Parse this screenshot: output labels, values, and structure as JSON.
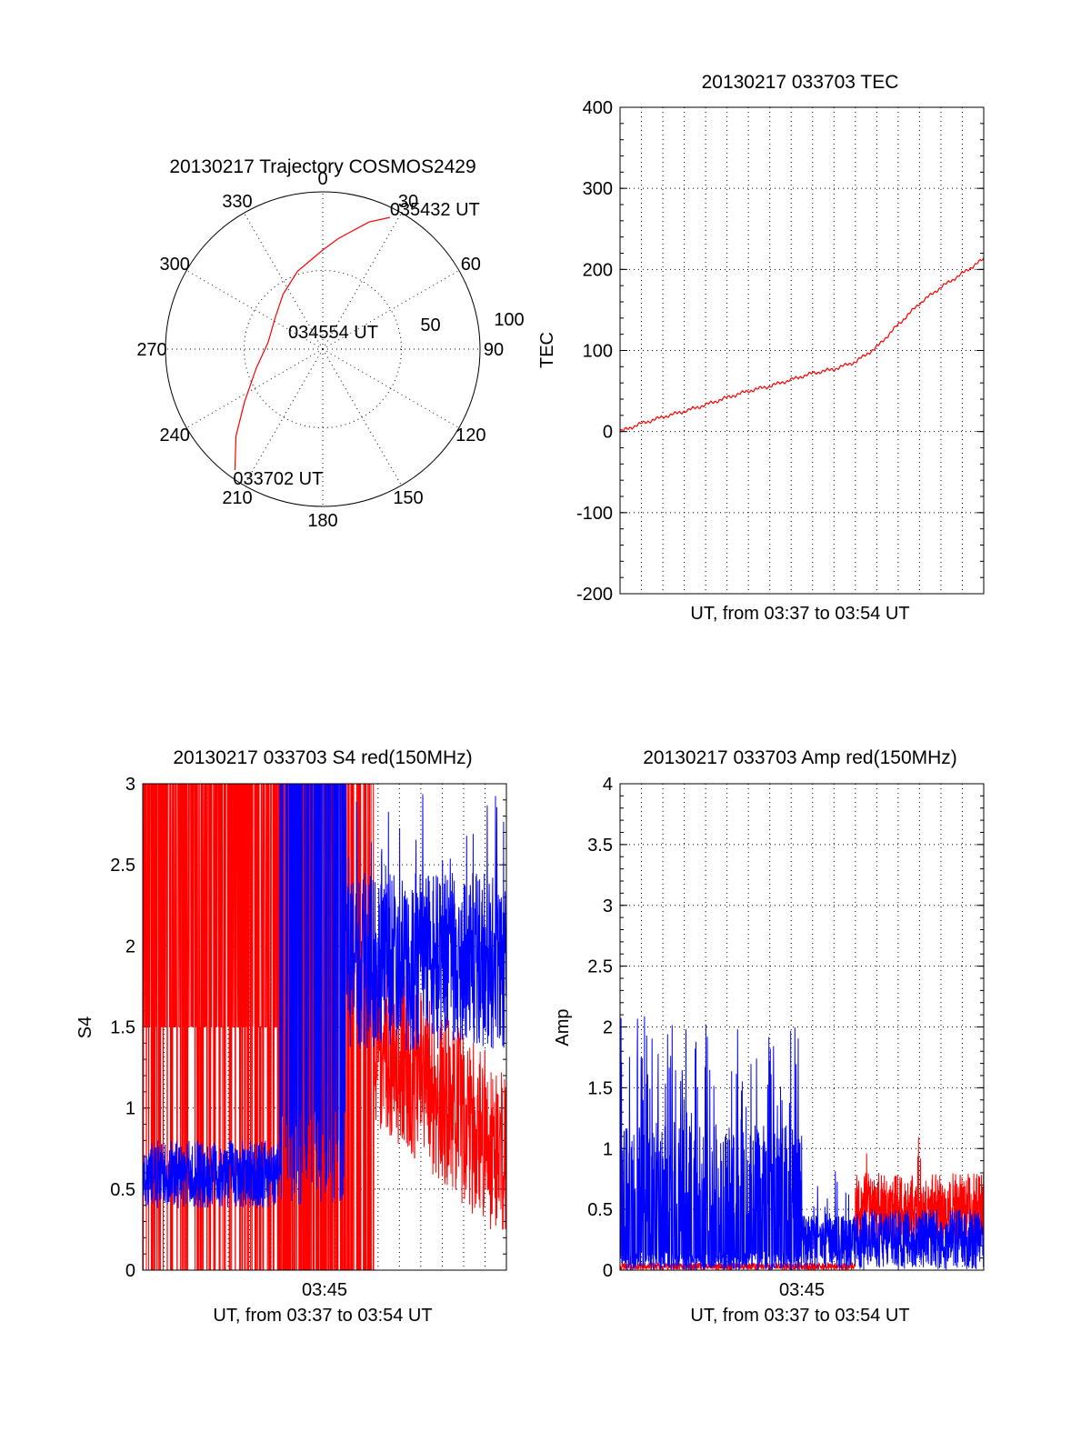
{
  "colors": {
    "red": "#ff0000",
    "blue": "#0000ff",
    "axis": "#000000"
  },
  "chart_data": [
    {
      "id": "trajectory",
      "type": "polar",
      "title": "20130217 Trajectory COSMOS2429",
      "angle_labels": [
        "0",
        "30",
        "60",
        "90",
        "120",
        "150",
        "180",
        "210",
        "240",
        "270",
        "300",
        "330"
      ],
      "radial_labels": [
        "50",
        "100"
      ],
      "rlim": [
        0,
        100
      ],
      "grid": true,
      "series": [
        {
          "color": "red",
          "points": [
            {
              "az": 216,
              "el": 95
            },
            {
              "az": 225,
              "el": 78
            },
            {
              "az": 236,
              "el": 60
            },
            {
              "az": 254,
              "el": 44
            },
            {
              "az": 277,
              "el": 35
            },
            {
              "az": 302,
              "el": 36
            },
            {
              "az": 324,
              "el": 43
            },
            {
              "az": 342,
              "el": 52
            },
            {
              "az": 360,
              "el": 63
            },
            {
              "az": 8,
              "el": 71
            },
            {
              "az": 20,
              "el": 86
            },
            {
              "az": 27,
              "el": 94
            }
          ]
        }
      ],
      "annotations": [
        {
          "text": "035432 UT",
          "az": 27,
          "el": 94
        },
        {
          "text": "034554 UT",
          "az": 270,
          "el": 0
        },
        {
          "text": "033702 UT",
          "az": 216,
          "el": 95
        }
      ]
    },
    {
      "id": "tec",
      "type": "line",
      "title": "20130217 033703 TEC",
      "xlabel": "UT, from 03:37 to 03:54 UT",
      "ylabel": "TEC",
      "xlim": [
        0,
        17
      ],
      "ylim": [
        -200,
        400
      ],
      "yticks": [
        "-200",
        "-100",
        "0",
        "100",
        "200",
        "300",
        "400"
      ],
      "grid": true,
      "series": [
        {
          "color": "red",
          "x": [
            0,
            0.5,
            1,
            1.5,
            2,
            3,
            4,
            5,
            6,
            7,
            8,
            9,
            10,
            11,
            11.5,
            12,
            12.5,
            13,
            14,
            15,
            16,
            17
          ],
          "y": [
            0,
            5,
            10,
            14,
            18,
            25,
            33,
            42,
            50,
            56,
            64,
            72,
            77,
            86,
            95,
            104,
            118,
            132,
            158,
            178,
            195,
            213
          ]
        }
      ]
    },
    {
      "id": "s4",
      "type": "line",
      "title": "20130217 033703 S4 red(150MHz)",
      "xlabel": "UT, from 03:37 to 03:54 UT",
      "ylabel": "S4",
      "xlim": [
        0,
        17
      ],
      "ylim": [
        0,
        3
      ],
      "xticks": [
        {
          "value": 8.5,
          "label": "03:45"
        }
      ],
      "yticks": [
        "0",
        "0.5",
        "1",
        "1.5",
        "2",
        "2.5",
        "3"
      ],
      "grid": true,
      "series": [
        {
          "color": "red",
          "description_range": "saturated 0-3 from 0 to 11; 0.3-1.5 after 11"
        },
        {
          "color": "blue",
          "description_range": "0.35-0.8 from 0 to 6.5; 1.3-2.6 after 9.5"
        }
      ]
    },
    {
      "id": "amp",
      "type": "line",
      "title": "20130217 033703 Amp red(150MHz)",
      "xlabel": "UT, from 03:37 to 03:54 UT",
      "ylabel": "Amp",
      "xlim": [
        0,
        17
      ],
      "ylim": [
        0,
        4
      ],
      "xticks": [
        {
          "value": 8.5,
          "label": "03:45"
        }
      ],
      "yticks": [
        "0",
        "0.5",
        "1",
        "1.5",
        "2",
        "2.5",
        "3",
        "3.5",
        "4"
      ],
      "grid": true,
      "series": [
        {
          "color": "blue",
          "description_range": "0-2.1 from 0 to 8.5; 0-0.5 after 8.5"
        },
        {
          "color": "red",
          "description_range": "near 0 before 11; 0.2-0.9 after 11"
        }
      ]
    }
  ]
}
